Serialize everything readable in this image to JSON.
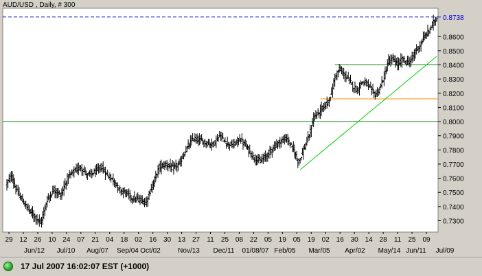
{
  "chart_data": {
    "type": "ohlc",
    "title": "AUD/USD , Daily, # 300",
    "ylim": [
      0.722,
      0.88
    ],
    "y_ticks": [
      "0.7300",
      "0.7400",
      "0.7500",
      "0.7600",
      "0.7700",
      "0.7800",
      "0.7900",
      "0.8000",
      "0.8100",
      "0.8200",
      "0.8300",
      "0.8400",
      "0.8500",
      "0.8600"
    ],
    "last_price_label": "0.8738",
    "last_price": 0.8738,
    "x_day_labels": [
      "29",
      "12",
      "26",
      "10",
      "24",
      "07",
      "21",
      "04",
      "18",
      "02",
      "16",
      "30",
      "13",
      "27",
      "11",
      "25",
      "08",
      "22",
      "05",
      "19",
      "05",
      "19",
      "02",
      "16",
      "30",
      "14",
      "28",
      "11",
      "25",
      "09"
    ],
    "x_month_labels": [
      "Jun/12",
      "Jul/10",
      "Aug/07",
      "Sep/04",
      "Oct/02",
      "Nov/13",
      "Dec/11",
      "01/08/07",
      "Feb/05",
      "Mar/05",
      "Apr/02",
      "May/14",
      "Jun/11",
      "Jul/09"
    ],
    "n_bars": 300,
    "price_path": [
      [
        0,
        0.756
      ],
      [
        4,
        0.762
      ],
      [
        8,
        0.752
      ],
      [
        14,
        0.744
      ],
      [
        20,
        0.737
      ],
      [
        26,
        0.732
      ],
      [
        30,
        0.728
      ],
      [
        36,
        0.745
      ],
      [
        42,
        0.752
      ],
      [
        48,
        0.748
      ],
      [
        54,
        0.76
      ],
      [
        60,
        0.765
      ],
      [
        66,
        0.768
      ],
      [
        72,
        0.762
      ],
      [
        78,
        0.764
      ],
      [
        84,
        0.768
      ],
      [
        90,
        0.762
      ],
      [
        96,
        0.758
      ],
      [
        100,
        0.752
      ],
      [
        106,
        0.75
      ],
      [
        112,
        0.746
      ],
      [
        118,
        0.745
      ],
      [
        124,
        0.743
      ],
      [
        130,
        0.755
      ],
      [
        136,
        0.768
      ],
      [
        142,
        0.77
      ],
      [
        148,
        0.767
      ],
      [
        154,
        0.77
      ],
      [
        160,
        0.78
      ],
      [
        166,
        0.788
      ],
      [
        172,
        0.787
      ],
      [
        178,
        0.785
      ],
      [
        184,
        0.784
      ],
      [
        190,
        0.79
      ],
      [
        196,
        0.785
      ],
      [
        202,
        0.783
      ],
      [
        208,
        0.788
      ],
      [
        214,
        0.782
      ],
      [
        220,
        0.775
      ],
      [
        226,
        0.772
      ],
      [
        232,
        0.776
      ],
      [
        238,
        0.782
      ],
      [
        244,
        0.786
      ],
      [
        250,
        0.788
      ],
      [
        256,
        0.78
      ],
      [
        260,
        0.772
      ],
      [
        262,
        0.774
      ],
      [
        266,
        0.782
      ],
      [
        270,
        0.79
      ],
      [
        274,
        0.803
      ],
      [
        278,
        0.806
      ],
      [
        282,
        0.81
      ],
      [
        286,
        0.813
      ],
      [
        290,
        0.82
      ],
      [
        293,
        0.832
      ],
      [
        297,
        0.837
      ],
      [
        301,
        0.833
      ],
      [
        305,
        0.83
      ],
      [
        309,
        0.825
      ],
      [
        313,
        0.822
      ],
      [
        317,
        0.828
      ],
      [
        321,
        0.827
      ],
      [
        325,
        0.823
      ],
      [
        329,
        0.819
      ],
      [
        333,
        0.823
      ],
      [
        337,
        0.832
      ],
      [
        341,
        0.843
      ],
      [
        345,
        0.844
      ],
      [
        349,
        0.84
      ],
      [
        353,
        0.844
      ],
      [
        357,
        0.842
      ],
      [
        361,
        0.843
      ],
      [
        365,
        0.85
      ],
      [
        369,
        0.854
      ],
      [
        373,
        0.86
      ],
      [
        377,
        0.864
      ],
      [
        381,
        0.87
      ],
      [
        384,
        0.8738
      ]
    ],
    "horizontal_lines": [
      {
        "name": "last-price-line",
        "y": 0.8738,
        "color": "#0000cc",
        "style": "dashed",
        "x_from": 0,
        "x_to": 384
      },
      {
        "name": "support-line-0800",
        "y": 0.8,
        "color": "#008000",
        "style": "solid",
        "x_from": 0,
        "x_to": 384
      },
      {
        "name": "resistance-line-0840",
        "y": 0.84,
        "color": "#008000",
        "style": "solid",
        "x_from": 293,
        "x_to": 384
      },
      {
        "name": "support-line-0816",
        "y": 0.816,
        "color": "#ff8c00",
        "style": "solid",
        "x_from": 280,
        "x_to": 384
      }
    ],
    "trend_lines": [
      {
        "name": "rising-trend-line",
        "color": "#00cc00",
        "from": [
          262,
          0.766
        ],
        "to": [
          384,
          0.846
        ]
      }
    ],
    "grid": false,
    "legend": "none"
  },
  "status": {
    "text": "17 Jul 2007 16:02:07  EST (+1000)"
  },
  "colors": {
    "plot_background": "#ffffff",
    "frame_background": "#d4d0c8",
    "bars": "#000000",
    "status_indicator": "#2fae2f"
  }
}
